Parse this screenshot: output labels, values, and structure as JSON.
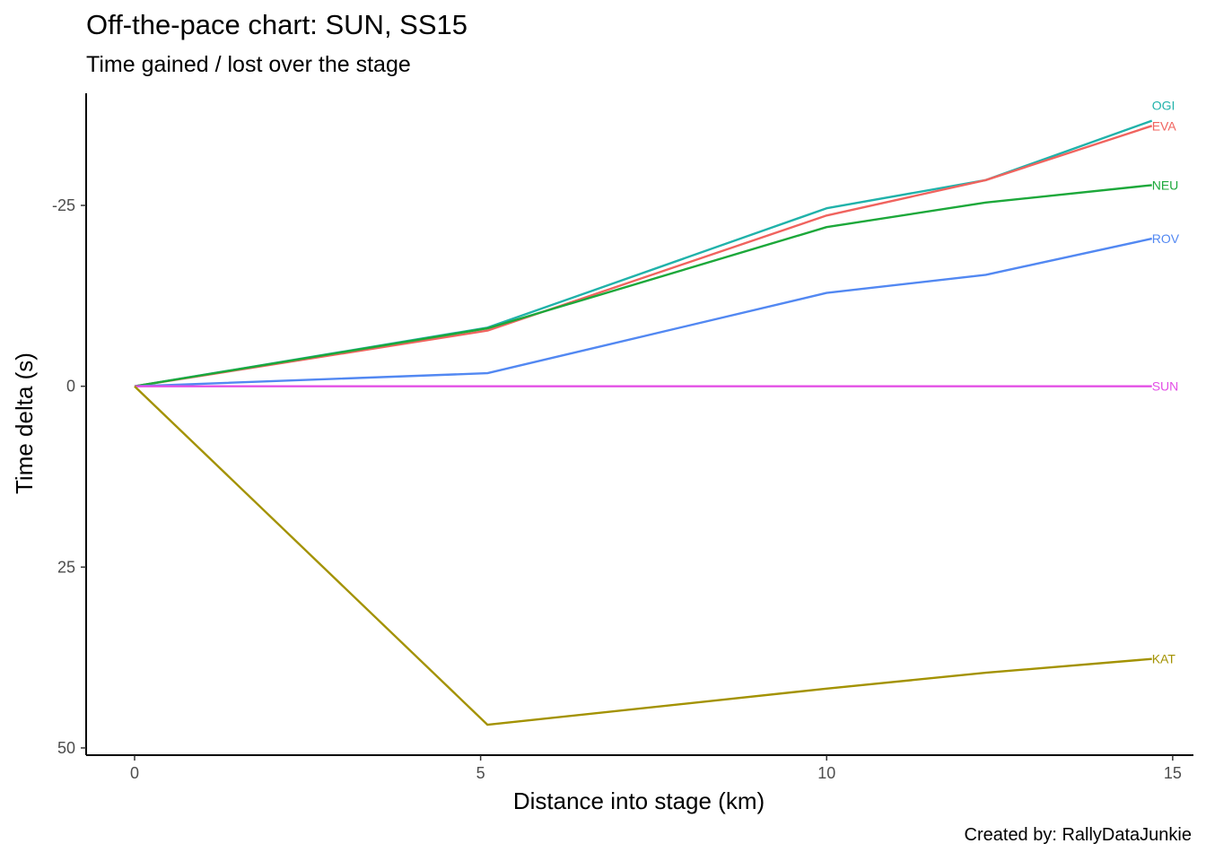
{
  "chart_data": {
    "type": "line",
    "title": "Off-the-pace chart: SUN, SS15",
    "subtitle": "Time gained / lost over the stage",
    "caption": "Created by: RallyDataJunkie",
    "xlabel": "Distance into stage (km)",
    "ylabel": "Time delta (s)",
    "xlim": [
      -0.7,
      15.3
    ],
    "ylim": [
      51,
      -40.5
    ],
    "y_reversed": true,
    "xticks": [
      0,
      5,
      10,
      15
    ],
    "yticks": [
      -25,
      0,
      25,
      50
    ],
    "ytick_labels": [
      "-25",
      "0",
      "25",
      "50"
    ],
    "grid": false,
    "legend": "none",
    "series": [
      {
        "name": "OGI",
        "color": "#20B2AA",
        "x": [
          0,
          5.1,
          10.0,
          12.3,
          14.7
        ],
        "y": [
          0,
          -8.1,
          -24.6,
          -28.5,
          -36.7
        ]
      },
      {
        "name": "EVA",
        "color": "#F0635E",
        "x": [
          0,
          5.1,
          10.0,
          12.3,
          14.7
        ],
        "y": [
          0,
          -7.7,
          -23.6,
          -28.5,
          -36.0
        ]
      },
      {
        "name": "NEU",
        "color": "#1CA83A",
        "x": [
          0,
          5.1,
          10.0,
          12.3,
          14.7
        ],
        "y": [
          0,
          -8.0,
          -22.0,
          -25.4,
          -27.8
        ]
      },
      {
        "name": "ROV",
        "color": "#5288F2",
        "x": [
          0,
          5.1,
          10.0,
          12.3,
          14.7
        ],
        "y": [
          0,
          -1.8,
          -12.9,
          -15.4,
          -20.4
        ]
      },
      {
        "name": "SUN",
        "color": "#E34FE6",
        "x": [
          0,
          5.1,
          10.0,
          12.3,
          14.7
        ],
        "y": [
          0,
          0,
          0,
          0,
          0
        ]
      },
      {
        "name": "KAT",
        "color": "#A39200",
        "x": [
          0,
          5.1,
          10.0,
          12.3,
          14.7
        ],
        "y": [
          0,
          46.8,
          41.8,
          39.6,
          37.7
        ]
      }
    ]
  }
}
